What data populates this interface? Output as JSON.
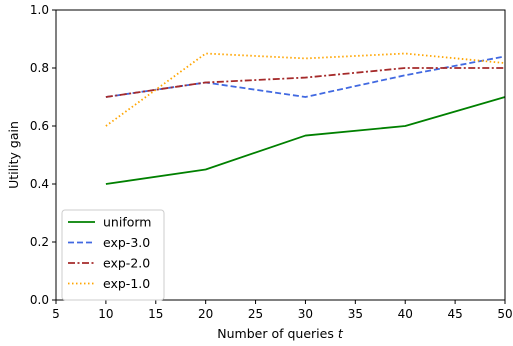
{
  "chart_data": {
    "type": "line",
    "title": "",
    "xlabel": "Number of queries",
    "xlabel_var": "t",
    "ylabel": "Utility gain",
    "xlim": [
      5,
      50
    ],
    "ylim": [
      0.0,
      1.0
    ],
    "xticks": [
      "5",
      "10",
      "15",
      "20",
      "25",
      "30",
      "35",
      "40",
      "45",
      "50"
    ],
    "yticks": [
      "0.0",
      "0.2",
      "0.4",
      "0.6",
      "0.8",
      "1.0"
    ],
    "grid": false,
    "legend_position": "lower-left",
    "x": [
      10,
      20,
      30,
      40,
      50
    ],
    "series": [
      {
        "name": "uniform",
        "values": [
          0.4,
          0.45,
          0.567,
          0.6,
          0.7
        ],
        "color": "#008000",
        "style": "solid"
      },
      {
        "name": "exp-3.0",
        "values": [
          0.7,
          0.75,
          0.7,
          0.775,
          0.84
        ],
        "color": "#4169e1",
        "style": "dashed"
      },
      {
        "name": "exp-2.0",
        "values": [
          0.7,
          0.75,
          0.767,
          0.8,
          0.8
        ],
        "color": "#a52a2a",
        "style": "dashdot"
      },
      {
        "name": "exp-1.0",
        "values": [
          0.6,
          0.85,
          0.833,
          0.85,
          0.817
        ],
        "color": "#ffa500",
        "style": "dotted"
      }
    ]
  }
}
